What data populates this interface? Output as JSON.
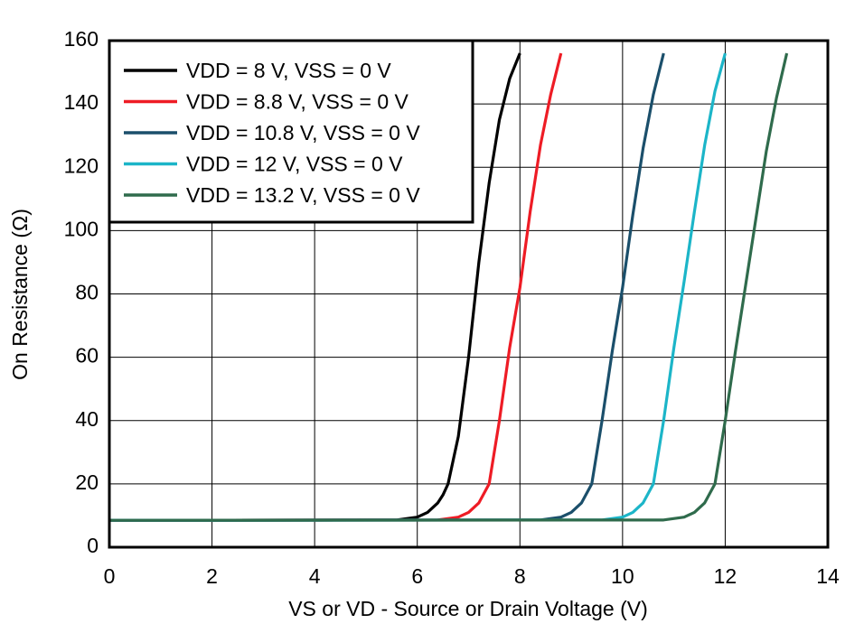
{
  "chart_data": {
    "type": "line",
    "xlabel": "VS or VD - Source or Drain Voltage (V)",
    "ylabel": "On Resistance (Ω)",
    "xlim": [
      0,
      14
    ],
    "xticks": [
      0,
      2,
      4,
      6,
      8,
      10,
      12,
      14
    ],
    "ylim": [
      0,
      160
    ],
    "yticks": [
      0,
      20,
      40,
      60,
      80,
      100,
      120,
      140,
      160
    ],
    "grid": true,
    "legend": "upper left",
    "series": [
      {
        "name": "VDD = 8 V, VSS = 0 V",
        "color": "#000000",
        "x": [
          0,
          5.6,
          6.0,
          6.2,
          6.4,
          6.5,
          6.6,
          6.8,
          7.0,
          7.2,
          7.4,
          7.6,
          7.8,
          8.0
        ],
        "values": [
          8.5,
          8.6,
          9.5,
          11,
          14,
          16.5,
          20,
          35,
          60,
          90,
          115,
          135,
          148,
          156
        ]
      },
      {
        "name": "VDD = 8.8 V, VSS = 0 V",
        "color": "#ee1c25",
        "x": [
          0,
          6.4,
          6.8,
          7.0,
          7.2,
          7.4,
          7.6,
          7.8,
          8.0,
          8.2,
          8.4,
          8.6,
          8.8
        ],
        "values": [
          8.5,
          8.6,
          9.5,
          11,
          14,
          20,
          40,
          63,
          82,
          106,
          127,
          143,
          156
        ]
      },
      {
        "name": "VDD = 10.8 V, VSS = 0 V",
        "color": "#1b4f6b",
        "x": [
          0,
          8.4,
          8.8,
          9.0,
          9.2,
          9.4,
          9.6,
          9.8,
          10.0,
          10.2,
          10.4,
          10.6,
          10.8
        ],
        "values": [
          8.5,
          8.6,
          9.5,
          11,
          14,
          20,
          40,
          62,
          82,
          105,
          126,
          143,
          156
        ]
      },
      {
        "name": "VDD = 12 V, VSS = 0 V",
        "color": "#1cb5c8",
        "x": [
          0,
          9.6,
          10.0,
          10.2,
          10.4,
          10.6,
          10.8,
          11.0,
          11.2,
          11.4,
          11.6,
          11.8,
          12.0
        ],
        "values": [
          8.5,
          8.6,
          9.5,
          11,
          14,
          20,
          40,
          63,
          84,
          106,
          127,
          144,
          156
        ]
      },
      {
        "name": "VDD = 13.2 V, VSS = 0 V",
        "color": "#2f6b4c",
        "x": [
          0,
          10.8,
          11.2,
          11.4,
          11.6,
          11.8,
          12.0,
          12.2,
          12.4,
          12.6,
          12.8,
          13.0,
          13.2
        ],
        "values": [
          8.5,
          8.6,
          9.5,
          11,
          14,
          20,
          40,
          62,
          83,
          104,
          125,
          142,
          156
        ]
      }
    ]
  }
}
